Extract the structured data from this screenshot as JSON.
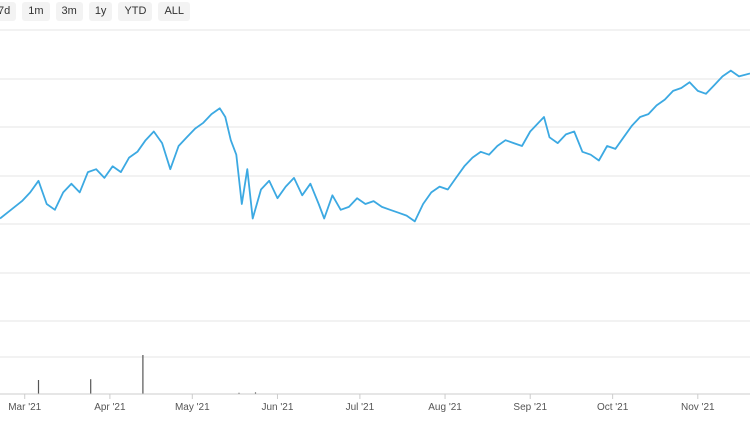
{
  "range_selector": {
    "buttons": [
      {
        "label": "7d"
      },
      {
        "label": "1m"
      },
      {
        "label": "3m"
      },
      {
        "label": "1y"
      },
      {
        "label": "YTD"
      },
      {
        "label": "ALL"
      }
    ]
  },
  "chart_data": {
    "type": "line",
    "title": "",
    "xlabel": "",
    "ylabel": "",
    "grid": true,
    "legend": "none",
    "x_tick_labels": [
      "Mar '21",
      "Apr '21",
      "May '21",
      "Jun '21",
      "Jul '21",
      "Aug '21",
      "Sep '21",
      "Oct '21",
      "Nov '21"
    ],
    "x_range": [
      "2021-02-20",
      "2021-11-20"
    ],
    "y_range": [
      0,
      100
    ],
    "series": [
      {
        "color": "#3ca9e2",
        "points": [
          [
            "2021-02-20",
            35
          ],
          [
            "2021-02-24",
            38
          ],
          [
            "2021-02-28",
            41
          ],
          [
            "2021-03-03",
            44
          ],
          [
            "2021-03-06",
            48
          ],
          [
            "2021-03-09",
            40
          ],
          [
            "2021-03-12",
            38
          ],
          [
            "2021-03-15",
            44
          ],
          [
            "2021-03-18",
            47
          ],
          [
            "2021-03-21",
            44
          ],
          [
            "2021-03-24",
            51
          ],
          [
            "2021-03-27",
            52
          ],
          [
            "2021-03-30",
            49
          ],
          [
            "2021-04-02",
            53
          ],
          [
            "2021-04-05",
            51
          ],
          [
            "2021-04-08",
            56
          ],
          [
            "2021-04-11",
            58
          ],
          [
            "2021-04-14",
            62
          ],
          [
            "2021-04-17",
            65
          ],
          [
            "2021-04-20",
            61
          ],
          [
            "2021-04-23",
            52
          ],
          [
            "2021-04-26",
            60
          ],
          [
            "2021-04-29",
            63
          ],
          [
            "2021-05-02",
            66
          ],
          [
            "2021-05-05",
            68
          ],
          [
            "2021-05-08",
            71
          ],
          [
            "2021-05-11",
            73
          ],
          [
            "2021-05-13",
            70
          ],
          [
            "2021-05-15",
            62
          ],
          [
            "2021-05-17",
            57
          ],
          [
            "2021-05-19",
            40
          ],
          [
            "2021-05-21",
            52
          ],
          [
            "2021-05-23",
            35
          ],
          [
            "2021-05-26",
            45
          ],
          [
            "2021-05-29",
            48
          ],
          [
            "2021-06-01",
            42
          ],
          [
            "2021-06-04",
            46
          ],
          [
            "2021-06-07",
            49
          ],
          [
            "2021-06-10",
            43
          ],
          [
            "2021-06-13",
            47
          ],
          [
            "2021-06-16",
            40
          ],
          [
            "2021-06-18",
            35
          ],
          [
            "2021-06-21",
            43
          ],
          [
            "2021-06-24",
            38
          ],
          [
            "2021-06-27",
            39
          ],
          [
            "2021-06-30",
            42
          ],
          [
            "2021-07-03",
            40
          ],
          [
            "2021-07-06",
            41
          ],
          [
            "2021-07-09",
            39
          ],
          [
            "2021-07-12",
            38
          ],
          [
            "2021-07-15",
            37
          ],
          [
            "2021-07-18",
            36
          ],
          [
            "2021-07-21",
            34
          ],
          [
            "2021-07-24",
            40
          ],
          [
            "2021-07-27",
            44
          ],
          [
            "2021-07-30",
            46
          ],
          [
            "2021-08-02",
            45
          ],
          [
            "2021-08-05",
            49
          ],
          [
            "2021-08-08",
            53
          ],
          [
            "2021-08-11",
            56
          ],
          [
            "2021-08-14",
            58
          ],
          [
            "2021-08-17",
            57
          ],
          [
            "2021-08-20",
            60
          ],
          [
            "2021-08-23",
            62
          ],
          [
            "2021-08-26",
            61
          ],
          [
            "2021-08-29",
            60
          ],
          [
            "2021-09-01",
            65
          ],
          [
            "2021-09-04",
            68
          ],
          [
            "2021-09-06",
            70
          ],
          [
            "2021-09-08",
            63
          ],
          [
            "2021-09-11",
            61
          ],
          [
            "2021-09-14",
            64
          ],
          [
            "2021-09-17",
            65
          ],
          [
            "2021-09-20",
            58
          ],
          [
            "2021-09-23",
            57
          ],
          [
            "2021-09-26",
            55
          ],
          [
            "2021-09-29",
            60
          ],
          [
            "2021-10-02",
            59
          ],
          [
            "2021-10-05",
            63
          ],
          [
            "2021-10-08",
            67
          ],
          [
            "2021-10-11",
            70
          ],
          [
            "2021-10-14",
            71
          ],
          [
            "2021-10-17",
            74
          ],
          [
            "2021-10-20",
            76
          ],
          [
            "2021-10-23",
            79
          ],
          [
            "2021-10-26",
            80
          ],
          [
            "2021-10-29",
            82
          ],
          [
            "2021-11-01",
            79
          ],
          [
            "2021-11-04",
            78
          ],
          [
            "2021-11-07",
            81
          ],
          [
            "2021-11-10",
            84
          ],
          [
            "2021-11-13",
            86
          ],
          [
            "2021-11-16",
            84
          ],
          [
            "2021-11-20",
            85
          ]
        ]
      }
    ],
    "volume": {
      "color": "#555555",
      "points": [
        [
          "2021-03-06",
          36
        ],
        [
          "2021-03-25",
          38
        ],
        [
          "2021-04-13",
          100
        ],
        [
          "2021-05-18",
          3
        ],
        [
          "2021-05-24",
          4
        ]
      ]
    }
  }
}
